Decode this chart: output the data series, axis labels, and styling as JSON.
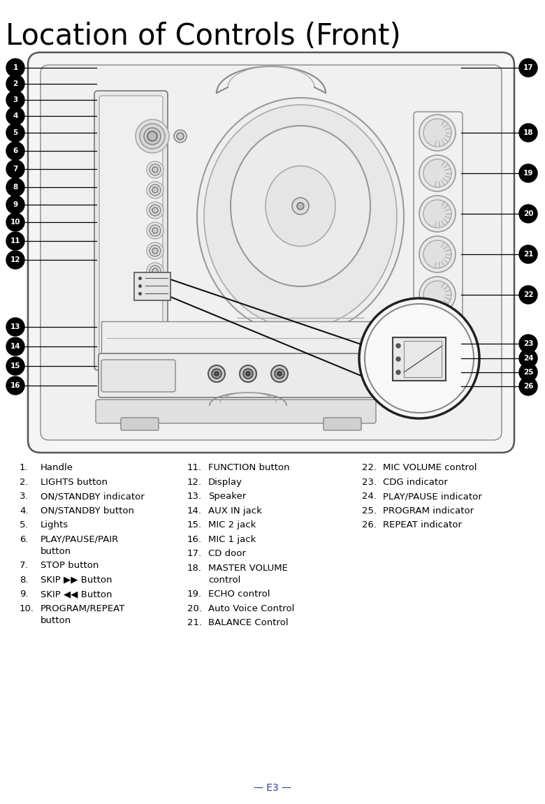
{
  "title": "Location of Controls (Front)",
  "title_fontsize": 30,
  "bg_color": "#ffffff",
  "text_color": "#000000",
  "footer_text": "— E3 —",
  "footer_color": "#3333aa",
  "list_col1": [
    [
      "1.",
      "Handle"
    ],
    [
      "2.",
      "LIGHTS button"
    ],
    [
      "3.",
      "ON/STANDBY indicator"
    ],
    [
      "4.",
      "ON/STANDBY button"
    ],
    [
      "5.",
      "Lights"
    ],
    [
      "6.",
      "PLAY/PAUSE/PAIR",
      "button"
    ],
    [
      "7.",
      "STOP button"
    ],
    [
      "8.",
      "SKIP ▶▶ Button"
    ],
    [
      "9.",
      "SKIP ◀◀ Button"
    ],
    [
      "10.",
      "PROGRAM/REPEAT",
      "button"
    ]
  ],
  "list_col2": [
    [
      "11.",
      "FUNCTION button"
    ],
    [
      "12.",
      "Display"
    ],
    [
      "13.",
      "Speaker"
    ],
    [
      "14.",
      "AUX IN jack"
    ],
    [
      "15.",
      "MIC 2 jack"
    ],
    [
      "16.",
      "MIC 1 jack"
    ],
    [
      "17.",
      "CD door"
    ],
    [
      "18.",
      "MASTER VOLUME",
      "control"
    ],
    [
      "19.",
      "ECHO control"
    ],
    [
      "20.",
      "Auto Voice Control"
    ],
    [
      "21.",
      "BALANCE Control"
    ]
  ],
  "list_col3": [
    [
      "22.",
      "MIC VOLUME control"
    ],
    [
      "23.",
      "CDG indicator"
    ],
    [
      "24.",
      "PLAY/PAUSE indicator"
    ],
    [
      "25.",
      "PROGRAM indicator"
    ],
    [
      "26.",
      "REPEAT indicator"
    ]
  ]
}
